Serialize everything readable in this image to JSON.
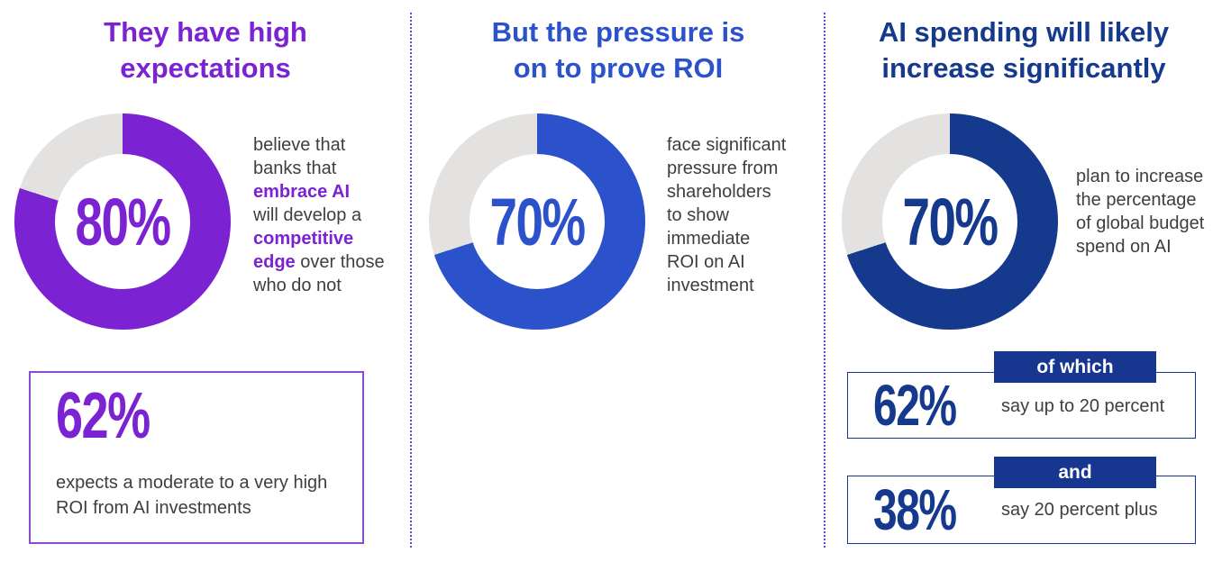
{
  "chart_data": [
    {
      "type": "pie",
      "subtype": "donut",
      "title": "They have high expectations",
      "labels": [
        "agree",
        "remainder"
      ],
      "values": [
        80,
        20
      ],
      "center_label": "80%",
      "colors": [
        "#7B22D2",
        "#E3E2E0"
      ],
      "annotation": "believe that banks that embrace AI will develop a competitive edge over those who do not",
      "supporting_stats": [
        {
          "value": 62,
          "text": "expects a moderate to a very high ROI from AI investments"
        }
      ]
    },
    {
      "type": "pie",
      "subtype": "donut",
      "title": "But the pressure is on to prove ROI",
      "labels": [
        "agree",
        "remainder"
      ],
      "values": [
        70,
        30
      ],
      "center_label": "70%",
      "colors": [
        "#2B51CB",
        "#E3E2E0"
      ],
      "annotation": "face significant pressure from shareholders to show immediate ROI on AI investment"
    },
    {
      "type": "pie",
      "subtype": "donut",
      "title": "AI spending will likely increase significantly",
      "labels": [
        "agree",
        "remainder"
      ],
      "values": [
        70,
        30
      ],
      "center_label": "70%",
      "colors": [
        "#15398C",
        "#E3E2E0"
      ],
      "annotation": "plan to increase the percentage of global budget spend on AI",
      "supporting_stats": [
        {
          "value": 62,
          "tab": "of which",
          "text": "say up to 20 percent"
        },
        {
          "value": 38,
          "tab": "and",
          "text": "say 20 percent plus"
        }
      ]
    }
  ],
  "columns": [
    {
      "title_lines": [
        "They have high",
        "expectations"
      ],
      "accent": "#7B22D2",
      "donut": {
        "label": "80%",
        "value": 80,
        "color": "#7B22D2",
        "track_color": "#E3E2E0"
      },
      "description_lines": [
        [
          {
            "t": "believe that"
          }
        ],
        [
          {
            "t": "banks that"
          }
        ],
        [
          {
            "t": "embrace AI",
            "accent": true
          }
        ],
        [
          {
            "t": "will develop a"
          }
        ],
        [
          {
            "t": "competitive",
            "accent": true
          }
        ],
        [
          {
            "t": "edge",
            "accent": true
          },
          {
            "t": " over those"
          }
        ],
        [
          {
            "t": "who do not"
          }
        ]
      ],
      "stat_box": {
        "value": "62%",
        "description_lines": [
          [
            {
              "t": "expects a moderate to a very high"
            }
          ],
          [
            {
              "t": "ROI from AI investments"
            }
          ]
        ]
      }
    },
    {
      "title_lines": [
        "But the pressure is",
        "on to prove ROI"
      ],
      "accent": "#2B51CB",
      "donut": {
        "label": "70%",
        "value": 70,
        "color": "#2B51CB",
        "track_color": "#E3E2E0"
      },
      "description_lines": [
        [
          {
            "t": "face significant"
          }
        ],
        [
          {
            "t": "pressure from"
          }
        ],
        [
          {
            "t": "shareholders"
          }
        ],
        [
          {
            "t": "to show"
          }
        ],
        [
          {
            "t": "immediate"
          }
        ],
        [
          {
            "t": "ROI on AI"
          }
        ],
        [
          {
            "t": "investment"
          }
        ]
      ]
    },
    {
      "title_lines": [
        "AI spending will likely",
        "increase significantly"
      ],
      "accent": "#15398C",
      "donut": {
        "label": "70%",
        "value": 70,
        "color": "#15398C",
        "track_color": "#E3E2E0"
      },
      "description_lines": [
        [
          {
            "t": "plan to increase"
          }
        ],
        [
          {
            "t": "the percentage"
          }
        ],
        [
          {
            "t": "of global budget"
          }
        ],
        [
          {
            "t": "spend on AI"
          }
        ]
      ],
      "stat_boxes": [
        {
          "value": "62%",
          "tab_label": "of which",
          "description": "say up to 20 percent"
        },
        {
          "value": "38%",
          "tab_label": "and",
          "description": "say 20 percent plus"
        }
      ]
    }
  ]
}
